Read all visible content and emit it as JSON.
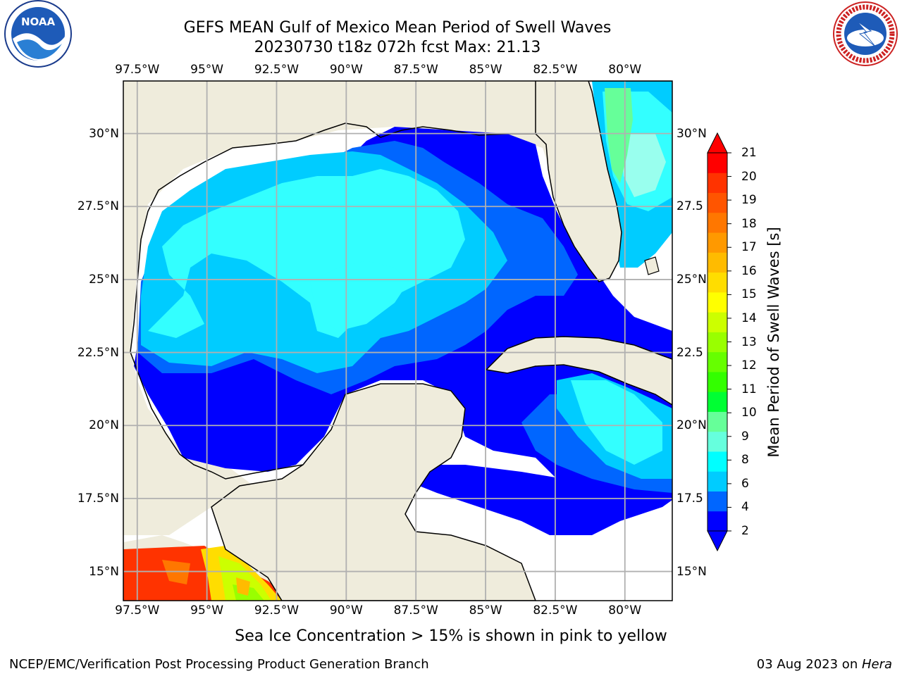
{
  "title": {
    "line1": "GEFS MEAN Gulf of Mexico Mean Period of Swell Waves",
    "line2": "20230730 t18z 072h fcst   Max: 21.13"
  },
  "logos": {
    "left": {
      "icon": "noaa-logo",
      "text": "NOAA"
    },
    "right": {
      "icon": "national-weather-service-logo",
      "text": "NATIONAL WEATHER SERVICE"
    }
  },
  "map": {
    "lon_ticks": [
      "97.5°W",
      "95°W",
      "92.5°W",
      "90°W",
      "87.5°W",
      "85°W",
      "82.5°W",
      "80°W"
    ],
    "lat_ticks_left": [
      "30°N",
      "27.5°N",
      "25°N",
      "22.5°N",
      "20°N",
      "17.5°N",
      "15°N"
    ],
    "lat_ticks_right": [
      "30°N",
      "27.5",
      "25°N",
      "22.5",
      "20°N",
      "17.5",
      "15°N"
    ],
    "lon_range": [
      -98,
      -78.3
    ],
    "lat_range": [
      14,
      31.8
    ],
    "colors": {
      "land": "#efecdc",
      "ocean_background": "#ffffff",
      "grid": "#b0b0b0"
    }
  },
  "colorbar": {
    "label": "Mean Period of Swell Waves [s]",
    "ticks": [
      "21",
      "20",
      "19",
      "18",
      "17",
      "16",
      "15",
      "14",
      "13",
      "12",
      "11",
      "10",
      "9",
      "8",
      "6",
      "4",
      "2"
    ],
    "colors": [
      "#0000ff",
      "#0066ff",
      "#00ccff",
      "#00ffff",
      "#66ffdd",
      "#66ff99",
      "#00ff33",
      "#33ff00",
      "#66ff00",
      "#99ff00",
      "#ccff00",
      "#ffff00",
      "#ffdd00",
      "#ffbb00",
      "#ff9900",
      "#ff7700",
      "#ff5500",
      "#ff3300",
      "#ff0000"
    ]
  },
  "note": "Sea Ice Concentration > 15% is shown in pink to yellow",
  "footer": {
    "left": "NCEP/EMC/Verification Post Processing Product Generation Branch",
    "right_date": "03 Aug 2023 on ",
    "right_machine": "Hera"
  }
}
